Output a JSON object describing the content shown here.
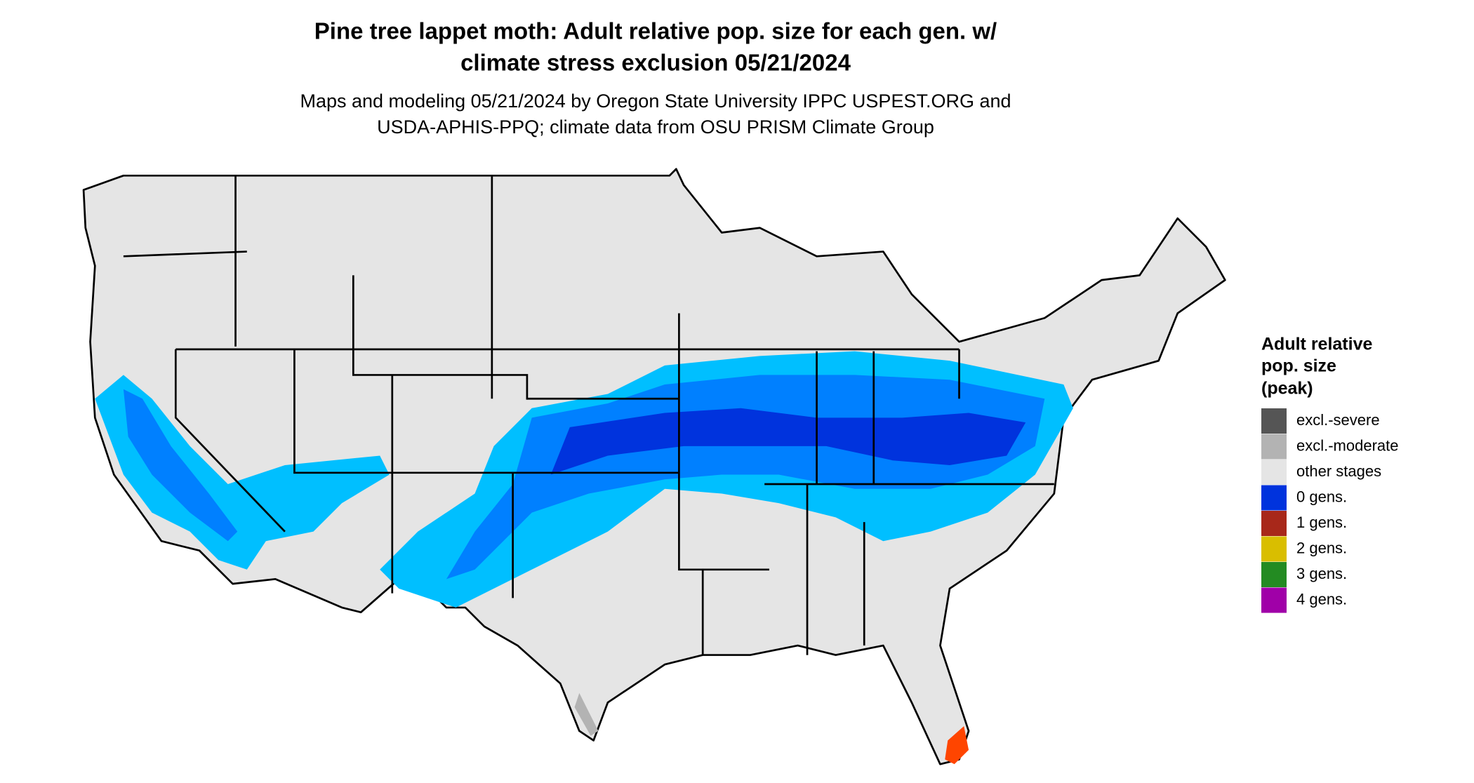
{
  "header": {
    "title": [
      "Pine tree lappet moth: Adult relative pop. size for each gen. w/",
      "climate stress exclusion 05/21/2024"
    ],
    "subtitle": [
      "Maps and modeling 05/21/2024 by Oregon State University IPPC USPEST.ORG and",
      "USDA-APHIS-PPQ; climate data from OSU PRISM Climate Group"
    ]
  },
  "legend": {
    "title": [
      "Adult relative",
      "pop. size",
      "(peak)"
    ],
    "items": [
      {
        "label": "excl.-severe",
        "color": "#555555"
      },
      {
        "label": "excl.-moderate",
        "color": "#b3b3b3"
      },
      {
        "label": "other stages",
        "color": "#e5e5e5"
      },
      {
        "label": "0 gens.",
        "color": "#0033dd"
      },
      {
        "label": "1 gens.",
        "color": "#a8281a"
      },
      {
        "label": "2 gens.",
        "color": "#d9be00"
      },
      {
        "label": "3 gens.",
        "color": "#238b22"
      },
      {
        "label": "4 gens.",
        "color": "#a000a8"
      }
    ]
  }
}
